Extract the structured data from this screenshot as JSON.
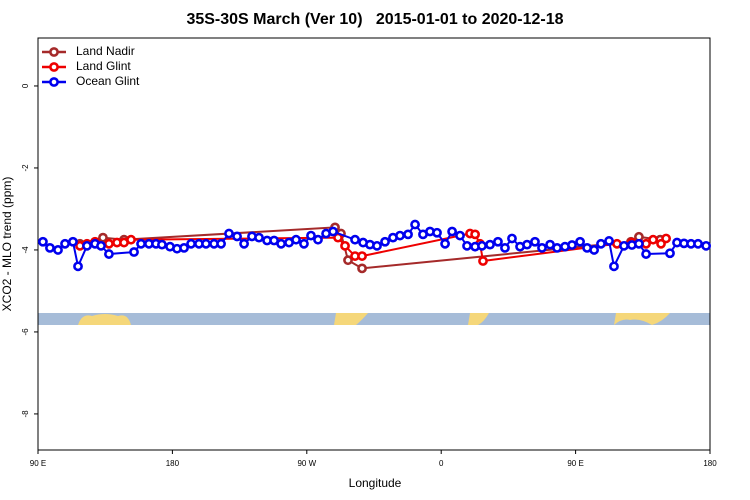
{
  "chart_data": {
    "type": "line",
    "title": "35S-30S March (Ver 10)   2015-01-01 to 2020-12-18",
    "xlabel": "Longitude",
    "ylabel": "XCO2 - MLO trend (ppm)",
    "xlim": [
      90,
      540
    ],
    "xticks": [
      {
        "value": 90,
        "label": "90 E"
      },
      {
        "value": 180,
        "label": "180"
      },
      {
        "value": 270,
        "label": "90 W"
      },
      {
        "value": 360,
        "label": "0"
      },
      {
        "value": 450,
        "label": "90 E"
      },
      {
        "value": 540,
        "label": "180"
      }
    ],
    "ylim": [
      -8.88,
      1.17
    ],
    "yticks": [
      0,
      -2,
      -4,
      -6,
      -8
    ],
    "legend": "top-left",
    "series": [
      {
        "name": "Land Nadir",
        "color": "#a52a2a",
        "x": [
          118.1,
          133.5,
          147.6,
          288.9,
          292.9,
          297.6,
          307,
          487.1,
          492.4,
          506.6
        ],
        "values": [
          -3.85,
          -3.7,
          -3.75,
          -3.45,
          -3.6,
          -4.25,
          -4.45,
          -3.8,
          -3.68,
          -3.75
        ]
      },
      {
        "name": "Land Glint",
        "color": "#ee0000",
        "x": [
          118.1,
          122.8,
          128.2,
          137.5,
          142.9,
          147.6,
          152.3,
          290.9,
          295.6,
          302.3,
          307,
          379.3,
          382.7,
          386,
          388,
          477.7,
          487.7,
          497.2,
          501.9,
          507.2,
          510.6
        ],
        "values": [
          -3.9,
          -3.85,
          -3.8,
          -3.85,
          -3.82,
          -3.82,
          -3.75,
          -3.7,
          -3.9,
          -4.15,
          -4.15,
          -3.6,
          -3.62,
          -3.85,
          -4.27,
          -3.85,
          -3.82,
          -3.85,
          -3.75,
          -3.85,
          -3.72
        ]
      },
      {
        "name": "Ocean Glint",
        "color": "#0000ee",
        "x": [
          93.3,
          98,
          103.4,
          108.1,
          113.4,
          116.8,
          122.8,
          128.2,
          132.2,
          137.5,
          154.3,
          159,
          164.3,
          169,
          173,
          178.4,
          183.1,
          187.8,
          192.5,
          197.8,
          202.5,
          207.9,
          212.6,
          217.9,
          223.3,
          228,
          233.3,
          238,
          243.4,
          248.1,
          252.8,
          258.1,
          262.8,
          268.1,
          272.8,
          277.5,
          282.9,
          287.6,
          302.3,
          307.7,
          312.3,
          317,
          322.4,
          327.7,
          332.4,
          337.8,
          342.5,
          347.8,
          352.5,
          357.2,
          362.6,
          367.3,
          372.6,
          377.3,
          382.7,
          387.3,
          392.7,
          398,
          402.7,
          407.4,
          412.8,
          417.5,
          422.8,
          427.5,
          432.9,
          437.6,
          442.9,
          447.6,
          453,
          457.7,
          462.4,
          467,
          472.4,
          475.7,
          482.4,
          487.7,
          492.4,
          497.2,
          513.2,
          517.9,
          522.6,
          527.3,
          532,
          537.4
        ],
        "values": [
          -3.8,
          -3.95,
          -4.0,
          -3.85,
          -3.8,
          -4.4,
          -3.9,
          -3.85,
          -3.9,
          -4.1,
          -4.05,
          -3.85,
          -3.85,
          -3.85,
          -3.87,
          -3.92,
          -3.97,
          -3.95,
          -3.85,
          -3.85,
          -3.85,
          -3.85,
          -3.85,
          -3.6,
          -3.67,
          -3.85,
          -3.67,
          -3.7,
          -3.77,
          -3.77,
          -3.85,
          -3.82,
          -3.75,
          -3.85,
          -3.65,
          -3.75,
          -3.6,
          -3.55,
          -3.75,
          -3.82,
          -3.87,
          -3.9,
          -3.8,
          -3.7,
          -3.65,
          -3.62,
          -3.38,
          -3.62,
          -3.55,
          -3.58,
          -3.85,
          -3.55,
          -3.65,
          -3.9,
          -3.92,
          -3.9,
          -3.87,
          -3.8,
          -3.95,
          -3.72,
          -3.92,
          -3.87,
          -3.8,
          -3.95,
          -3.87,
          -3.95,
          -3.92,
          -3.88,
          -3.8,
          -3.95,
          -4.0,
          -3.85,
          -3.78,
          -4.4,
          -3.9,
          -3.88,
          -3.85,
          -4.1,
          -4.08,
          -3.82,
          -3.84,
          -3.85,
          -3.85,
          -3.9
        ]
      }
    ]
  }
}
